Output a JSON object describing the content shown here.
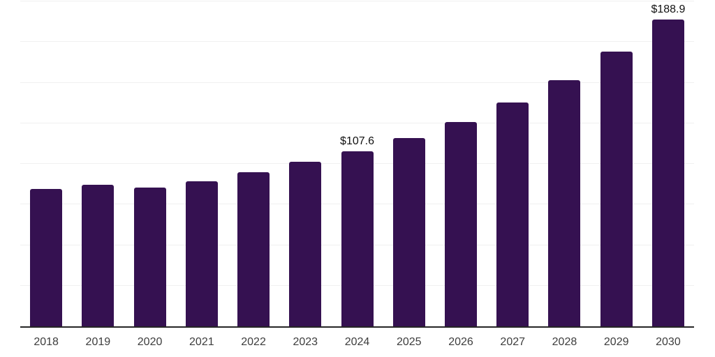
{
  "chart_data": {
    "type": "bar",
    "title": "",
    "xlabel": "",
    "ylabel": "",
    "categories": [
      "2018",
      "2019",
      "2020",
      "2021",
      "2022",
      "2023",
      "2024",
      "2025",
      "2026",
      "2027",
      "2028",
      "2029",
      "2030"
    ],
    "values": [
      84.4,
      87.3,
      85.6,
      89.4,
      94.9,
      101.1,
      107.6,
      116.1,
      125.7,
      137.7,
      151.4,
      169.0,
      188.9
    ],
    "data_labels": [
      "",
      "",
      "",
      "",
      "",
      "",
      "$107.6",
      "",
      "",
      "",
      "",
      "",
      "$188.9"
    ],
    "ylim": [
      0,
      200
    ],
    "gridline_values": [
      25,
      50,
      75,
      100,
      125,
      150,
      175,
      200
    ],
    "grid": true,
    "legend": "none",
    "y_axis_tick_labels_visible": false,
    "colors": {
      "bar": "#351151",
      "gridline": "#f0f0f0",
      "axis_line": "#262626",
      "tick_label": "#3d3d3d",
      "data_label": "#111111",
      "background": "#ffffff"
    }
  }
}
